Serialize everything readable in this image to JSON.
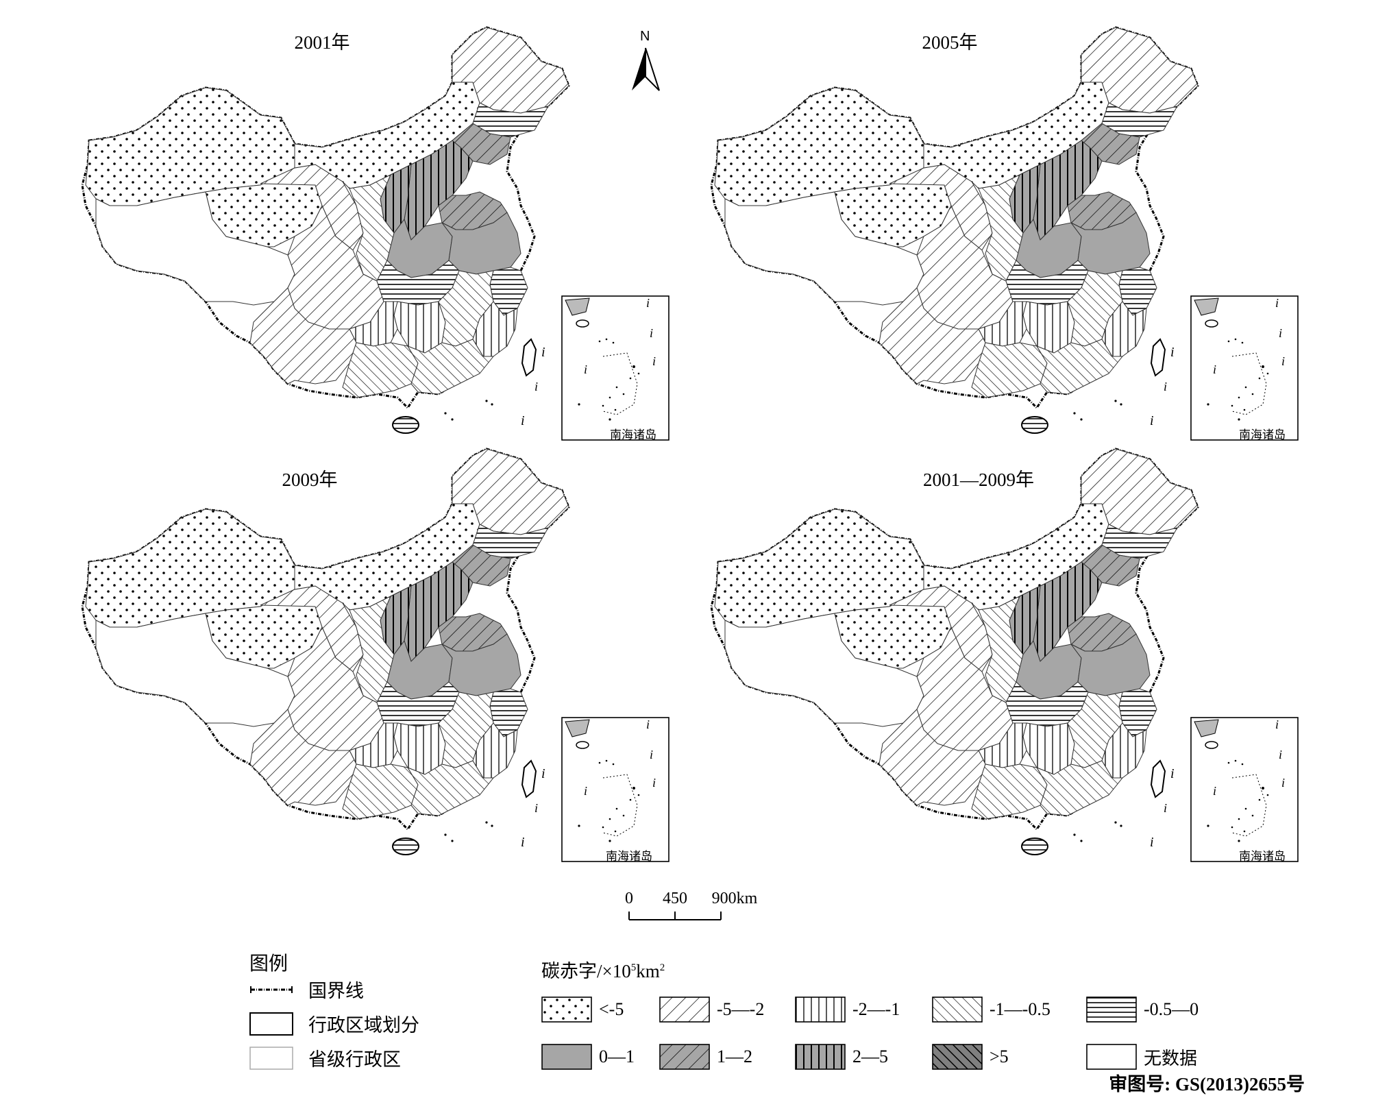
{
  "panels": [
    {
      "title": "2001年"
    },
    {
      "title": "2005年"
    },
    {
      "title": "2009年"
    },
    {
      "title": "2001—2009年"
    }
  ],
  "north_label": "N",
  "inset_label": "南海诸岛",
  "scale_bar": {
    "ticks": [
      "0",
      "450",
      "900km"
    ]
  },
  "legend": {
    "title": "图例",
    "items": [
      {
        "label": "国界线",
        "symbol": "national-border"
      },
      {
        "label": "行政区域划分",
        "symbol": "admin-division"
      },
      {
        "label": "省级行政区",
        "symbol": "province"
      }
    ]
  },
  "classes": {
    "title_prefix": "碳赤字/×10",
    "title_sup": "5",
    "title_suffix": "km",
    "title_sup2": "2",
    "items": [
      {
        "label": "<-5",
        "pattern": "dots"
      },
      {
        "label": "-5—-2",
        "pattern": "diag-back"
      },
      {
        "label": "-2—-1",
        "pattern": "vertical"
      },
      {
        "label": "-1—-0.5",
        "pattern": "diag-fwd"
      },
      {
        "label": "-0.5—0",
        "pattern": "horizontal"
      },
      {
        "label": "0—1",
        "pattern": "gray"
      },
      {
        "label": "1—2",
        "pattern": "gray-diag-back"
      },
      {
        "label": "2—5",
        "pattern": "gray-vertical"
      },
      {
        "label": ">5",
        "pattern": "dark-diag"
      },
      {
        "label": "无数据",
        "pattern": "none"
      }
    ]
  },
  "review_number": "审图号: GS(2013)2655号"
}
